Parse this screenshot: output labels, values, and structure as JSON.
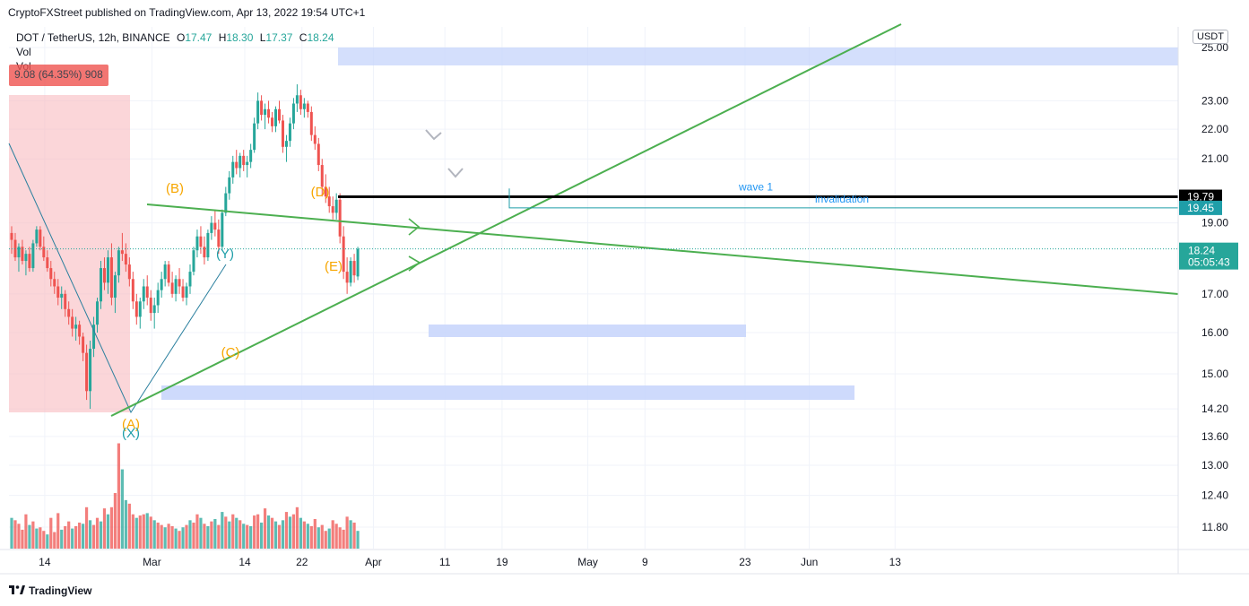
{
  "header": {
    "publisher": "CryptoFXStreet published on TradingView.com, Apr 13, 2022 19:54 UTC+1"
  },
  "legend": {
    "symbol": "DOT / TetherUS, 12h, BINANCE",
    "open_label": "O",
    "open": "17.47",
    "high_label": "H",
    "high": "18.30",
    "low_label": "L",
    "low": "17.37",
    "close_label": "C",
    "close": "18.24",
    "vol_label": "Vol",
    "vol_badge": "9.08 (64.35%) 908"
  },
  "unit": "USDT",
  "footer": {
    "brand": "TradingView"
  },
  "colors": {
    "up": "#26a69a",
    "down": "#ef5350",
    "trend": "#4caf50",
    "zone": "#c5d4fb",
    "shade": "#f8bbbf",
    "wave": "#f7a600",
    "wave_alt": "#1f9ea8",
    "label": "#2196f3"
  },
  "chart_data": {
    "type": "candlestick",
    "timeframe": "12h",
    "y_scale": "log",
    "price_ticks": [
      "25.00",
      "23.00",
      "22.00",
      "21.00",
      "19.00",
      "17.00",
      "16.00",
      "15.00",
      "14.20",
      "13.60",
      "13.00",
      "12.40",
      "11.80"
    ],
    "x_ticks": [
      {
        "label": "14",
        "date": "2022-02-14"
      },
      {
        "label": "Mar",
        "date": "2022-03-01"
      },
      {
        "label": "14",
        "date": "2022-03-14"
      },
      {
        "label": "22",
        "date": "2022-03-22"
      },
      {
        "label": "Apr",
        "date": "2022-04-01"
      },
      {
        "label": "11",
        "date": "2022-04-11"
      },
      {
        "label": "19",
        "date": "2022-04-19"
      },
      {
        "label": "May",
        "date": "2022-05-01"
      },
      {
        "label": "9",
        "date": "2022-05-09"
      },
      {
        "label": "23",
        "date": "2022-05-23"
      },
      {
        "label": "Jun",
        "date": "2022-06-01"
      },
      {
        "label": "13",
        "date": "2022-06-13"
      }
    ],
    "last_price": "18.24",
    "countdown": "05:05:43",
    "levels": [
      {
        "name": "wave 1",
        "price": 19.79,
        "label": "19.79"
      },
      {
        "name": "invalidation",
        "price": 19.45,
        "label": "19.45"
      }
    ],
    "annotations": {
      "wave1": "wave 1",
      "invalidation": "invalidation",
      "A": "(A)",
      "B": "(B)",
      "C": "(C)",
      "D": "(D)",
      "E": "(E)",
      "X": "(X)",
      "Y": "(Y)"
    },
    "candles": [
      [
        18.7,
        18.9,
        18.1,
        18.5
      ],
      [
        18.5,
        18.7,
        17.9,
        18.0
      ],
      [
        18.0,
        18.4,
        17.6,
        18.3
      ],
      [
        18.3,
        18.5,
        17.8,
        17.9
      ],
      [
        17.9,
        18.2,
        17.5,
        18.1
      ],
      [
        18.1,
        18.3,
        17.6,
        17.7
      ],
      [
        17.7,
        18.5,
        17.6,
        18.4
      ],
      [
        18.4,
        18.9,
        18.3,
        18.8
      ],
      [
        18.8,
        18.9,
        18.2,
        18.3
      ],
      [
        18.3,
        18.6,
        17.9,
        18.0
      ],
      [
        18.0,
        18.2,
        17.6,
        17.7
      ],
      [
        17.7,
        17.9,
        17.2,
        17.4
      ],
      [
        17.4,
        17.6,
        17.0,
        17.2
      ],
      [
        17.2,
        17.4,
        16.7,
        16.9
      ],
      [
        16.9,
        17.2,
        16.6,
        17.0
      ],
      [
        17.0,
        17.1,
        16.4,
        16.6
      ],
      [
        16.6,
        16.8,
        16.2,
        16.4
      ],
      [
        16.4,
        16.6,
        15.9,
        16.1
      ],
      [
        16.1,
        16.4,
        15.8,
        16.2
      ],
      [
        16.2,
        16.3,
        15.7,
        15.9
      ],
      [
        15.9,
        16.0,
        15.3,
        15.5
      ],
      [
        15.5,
        15.7,
        14.4,
        14.6
      ],
      [
        14.6,
        15.8,
        14.2,
        15.6
      ],
      [
        15.6,
        16.4,
        15.4,
        16.2
      ],
      [
        16.2,
        16.9,
        16.0,
        16.8
      ],
      [
        16.8,
        17.9,
        16.6,
        17.7
      ],
      [
        17.7,
        18.0,
        17.1,
        17.3
      ],
      [
        17.3,
        18.2,
        17.0,
        18.0
      ],
      [
        18.0,
        18.4,
        16.7,
        16.9
      ],
      [
        16.9,
        17.6,
        16.5,
        17.5
      ],
      [
        17.5,
        18.3,
        17.3,
        18.2
      ],
      [
        18.2,
        18.7,
        17.9,
        18.1
      ],
      [
        18.1,
        18.4,
        17.6,
        17.8
      ],
      [
        17.8,
        18.0,
        17.2,
        17.4
      ],
      [
        17.4,
        17.6,
        16.6,
        16.8
      ],
      [
        16.8,
        17.0,
        16.2,
        16.4
      ],
      [
        16.4,
        16.9,
        16.1,
        16.8
      ],
      [
        16.8,
        17.4,
        16.6,
        17.2
      ],
      [
        17.2,
        17.5,
        16.7,
        16.9
      ],
      [
        16.9,
        17.1,
        16.3,
        16.5
      ],
      [
        16.5,
        16.9,
        16.1,
        16.7
      ],
      [
        16.7,
        17.3,
        16.5,
        17.1
      ],
      [
        17.1,
        17.6,
        16.9,
        17.4
      ],
      [
        17.4,
        17.9,
        17.2,
        17.8
      ],
      [
        17.8,
        17.9,
        17.2,
        17.3
      ],
      [
        17.3,
        17.6,
        16.9,
        17.0
      ],
      [
        17.0,
        17.5,
        16.8,
        17.4
      ],
      [
        17.4,
        17.7,
        17.0,
        17.2
      ],
      [
        17.2,
        17.4,
        16.8,
        16.9
      ],
      [
        16.9,
        17.3,
        16.7,
        17.2
      ],
      [
        17.2,
        17.8,
        17.0,
        17.6
      ],
      [
        17.6,
        18.3,
        17.5,
        18.2
      ],
      [
        18.2,
        18.8,
        18.0,
        18.6
      ],
      [
        18.6,
        18.9,
        18.1,
        18.3
      ],
      [
        18.3,
        18.6,
        17.8,
        18.0
      ],
      [
        18.0,
        18.8,
        17.9,
        18.7
      ],
      [
        18.7,
        19.2,
        18.5,
        19.0
      ],
      [
        19.0,
        19.4,
        18.6,
        18.8
      ],
      [
        18.8,
        19.1,
        18.1,
        18.3
      ],
      [
        18.3,
        19.4,
        18.2,
        19.3
      ],
      [
        19.3,
        20.1,
        19.2,
        19.9
      ],
      [
        19.9,
        20.6,
        19.7,
        20.4
      ],
      [
        20.4,
        21.1,
        20.2,
        20.9
      ],
      [
        20.9,
        21.3,
        20.5,
        20.7
      ],
      [
        20.7,
        21.2,
        20.4,
        21.1
      ],
      [
        21.1,
        21.3,
        20.6,
        20.8
      ],
      [
        20.8,
        21.1,
        20.4,
        20.9
      ],
      [
        20.9,
        21.5,
        20.7,
        21.3
      ],
      [
        21.3,
        22.4,
        21.2,
        22.2
      ],
      [
        22.2,
        23.3,
        22.0,
        23.0
      ],
      [
        23.0,
        23.2,
        22.3,
        22.5
      ],
      [
        22.5,
        22.9,
        22.0,
        22.7
      ],
      [
        22.7,
        23.0,
        22.2,
        22.4
      ],
      [
        22.4,
        22.6,
        21.9,
        22.1
      ],
      [
        22.1,
        22.8,
        21.9,
        22.7
      ],
      [
        22.7,
        23.0,
        22.2,
        22.3
      ],
      [
        22.3,
        22.5,
        21.2,
        21.4
      ],
      [
        21.4,
        21.8,
        20.9,
        21.6
      ],
      [
        21.6,
        22.4,
        21.4,
        22.2
      ],
      [
        22.2,
        23.1,
        22.0,
        22.9
      ],
      [
        22.9,
        23.6,
        22.6,
        23.2
      ],
      [
        23.2,
        23.4,
        22.5,
        22.7
      ],
      [
        22.7,
        23.1,
        22.4,
        22.9
      ],
      [
        22.9,
        23.0,
        22.4,
        22.6
      ],
      [
        22.6,
        22.8,
        21.6,
        21.8
      ],
      [
        21.8,
        22.1,
        21.3,
        21.5
      ],
      [
        21.5,
        21.7,
        20.6,
        20.8
      ],
      [
        20.8,
        21.0,
        19.8,
        20.1
      ],
      [
        20.1,
        20.5,
        19.6,
        19.8
      ],
      [
        19.8,
        20.1,
        19.3,
        19.5
      ],
      [
        19.5,
        19.8,
        19.1,
        19.3
      ],
      [
        19.3,
        19.9,
        19.1,
        19.7
      ],
      [
        19.7,
        19.9,
        18.4,
        18.6
      ],
      [
        18.6,
        18.9,
        17.4,
        17.6
      ],
      [
        17.6,
        18.0,
        17.0,
        17.3
      ],
      [
        17.3,
        18.0,
        17.2,
        17.9
      ],
      [
        17.9,
        18.1,
        17.3,
        17.5
      ],
      [
        17.47,
        18.3,
        17.37,
        18.24
      ]
    ],
    "volume": [
      [
        2.6,
        1
      ],
      [
        2.4,
        0
      ],
      [
        2.1,
        0
      ],
      [
        1.6,
        0
      ],
      [
        2.9,
        0
      ],
      [
        2.0,
        1
      ],
      [
        2.3,
        0
      ],
      [
        1.7,
        1
      ],
      [
        1.8,
        0
      ],
      [
        1.5,
        0
      ],
      [
        1.2,
        1
      ],
      [
        2.6,
        0
      ],
      [
        1.4,
        0
      ],
      [
        3.0,
        0
      ],
      [
        1.6,
        1
      ],
      [
        1.9,
        0
      ],
      [
        2.3,
        0
      ],
      [
        1.7,
        1
      ],
      [
        1.9,
        0
      ],
      [
        2.2,
        0
      ],
      [
        2.1,
        1
      ],
      [
        3.5,
        0
      ],
      [
        2.4,
        1
      ],
      [
        2.0,
        0
      ],
      [
        2.6,
        0
      ],
      [
        2.3,
        1
      ],
      [
        3.4,
        0
      ],
      [
        2.9,
        1
      ],
      [
        3.5,
        0
      ],
      [
        4.7,
        0
      ],
      [
        8.9,
        0
      ],
      [
        6.7,
        1
      ],
      [
        4.1,
        1
      ],
      [
        3.8,
        0
      ],
      [
        2.9,
        0
      ],
      [
        2.6,
        1
      ],
      [
        2.8,
        0
      ],
      [
        2.9,
        0
      ],
      [
        3.0,
        1
      ],
      [
        2.7,
        0
      ],
      [
        2.4,
        1
      ],
      [
        2.2,
        0
      ],
      [
        2.0,
        0
      ],
      [
        1.8,
        1
      ],
      [
        2.1,
        0
      ],
      [
        1.9,
        0
      ],
      [
        1.7,
        1
      ],
      [
        1.5,
        0
      ],
      [
        1.8,
        1
      ],
      [
        2.0,
        0
      ],
      [
        2.4,
        1
      ],
      [
        2.2,
        0
      ],
      [
        2.9,
        0
      ],
      [
        2.6,
        1
      ],
      [
        2.1,
        0
      ],
      [
        1.9,
        1
      ],
      [
        2.3,
        0
      ],
      [
        2.5,
        1
      ],
      [
        2.0,
        0
      ],
      [
        3.1,
        1
      ],
      [
        2.7,
        0
      ],
      [
        2.3,
        1
      ],
      [
        2.9,
        0
      ],
      [
        2.6,
        1
      ],
      [
        2.4,
        0
      ],
      [
        2.1,
        1
      ],
      [
        2.0,
        0
      ],
      [
        1.9,
        1
      ],
      [
        2.8,
        0
      ],
      [
        2.9,
        0
      ],
      [
        2.2,
        1
      ],
      [
        3.4,
        0
      ],
      [
        2.8,
        1
      ],
      [
        2.6,
        0
      ],
      [
        2.3,
        1
      ],
      [
        2.0,
        0
      ],
      [
        2.4,
        1
      ],
      [
        3.1,
        0
      ],
      [
        2.7,
        1
      ],
      [
        2.9,
        0
      ],
      [
        3.5,
        0
      ],
      [
        2.6,
        1
      ],
      [
        2.3,
        0
      ],
      [
        2.1,
        1
      ],
      [
        1.9,
        0
      ],
      [
        2.5,
        0
      ],
      [
        1.8,
        1
      ],
      [
        2.0,
        0
      ],
      [
        1.5,
        0
      ],
      [
        1.7,
        1
      ],
      [
        2.4,
        0
      ],
      [
        2.1,
        0
      ],
      [
        1.8,
        0
      ],
      [
        1.6,
        0
      ],
      [
        2.7,
        0
      ],
      [
        2.4,
        1
      ],
      [
        2.2,
        0
      ],
      [
        1.5,
        1
      ]
    ]
  }
}
